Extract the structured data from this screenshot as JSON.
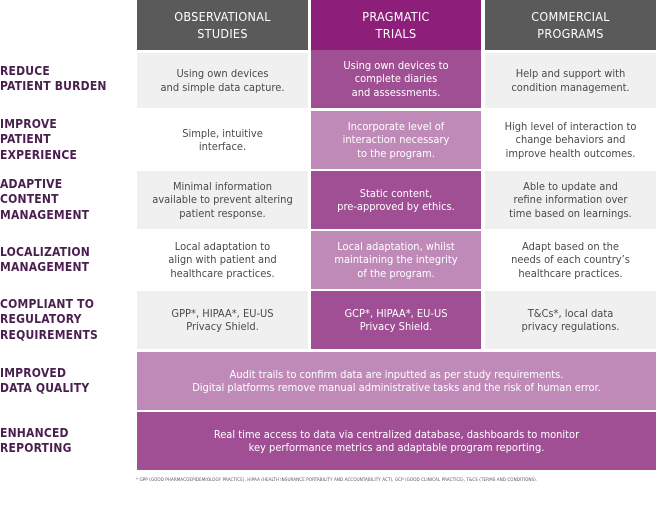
{
  "columns": [
    {
      "label": "OBSERVATIONAL\nSTUDIES",
      "color": "#5a5a5a"
    },
    {
      "label": "PRAGMATIC\nTRIALS",
      "color": "#8d1f7b"
    },
    {
      "label": "COMMERCIAL\nPROGRAMS",
      "color": "#5a5a5a"
    }
  ],
  "rows": [
    {
      "label": "REDUCE\nPATIENT BURDEN",
      "observational": "Using own devices\nand simple data capture.",
      "pragmatic": "Using own devices to\ncomplete diaries\nand assessments.",
      "commercial": "Help and support with\ncondition management."
    },
    {
      "label": "IMPROVE\nPATIENT\nEXPERIENCE",
      "observational": "Simple, intuitive\ninterface.",
      "pragmatic": "Incorporate level of\ninteraction necessary\nto the program.",
      "commercial": "High level of interaction to\nchange behaviors and\nimprove health outcomes."
    },
    {
      "label": "ADAPTIVE\nCONTENT\nMANAGEMENT",
      "observational": "Minimal information\navailable to prevent altering\npatient response.",
      "pragmatic": "Static content,\npre-approved by ethics.",
      "commercial": "Able to update and\nrefine information over\ntime based on learnings."
    },
    {
      "label": "LOCALIZATION\nMANAGEMENT",
      "observational": "Local adaptation to\nalign with patient and\nhealthcare practices.",
      "pragmatic": "Local adaptation, whilst\nmaintaining the integrity\nof the program.",
      "commercial": "Adapt based on the\nneeds of each country’s\nhealthcare practices."
    },
    {
      "label": "COMPLIANT TO\nREGULATORY\nREQUIREMENTS",
      "observational": "GPP*, HIPAA*, EU-US\nPrivacy Shield.",
      "pragmatic": "GCP*, HIPAA*, EU-US\nPrivacy Shield.",
      "commercial": "T&Cs*, local data\nprivacy regulations."
    }
  ],
  "span_rows": [
    {
      "label": "IMPROVED\nDATA QUALITY",
      "text": "Audit trails to confirm data are inputted as per study requirements.\nDigital platforms remove manual administrative tasks and the risk of human error."
    },
    {
      "label": "ENHANCED\nREPORTING",
      "text": "Real time access to data via centralized database, dashboards to monitor\nkey performance metrics and adaptable program reporting."
    }
  ],
  "footnote": "* GPP (GOOD PHARMACOEPIDEMIOLOGY PRACTICE), HIPAA (HEALTH INSURANCE PORTABILITY AND ACCOUNTABILITY ACT), GCP (GOOD CLINICAL PRACTICE), T&CS (TERMS AND CONDITIONS)."
}
